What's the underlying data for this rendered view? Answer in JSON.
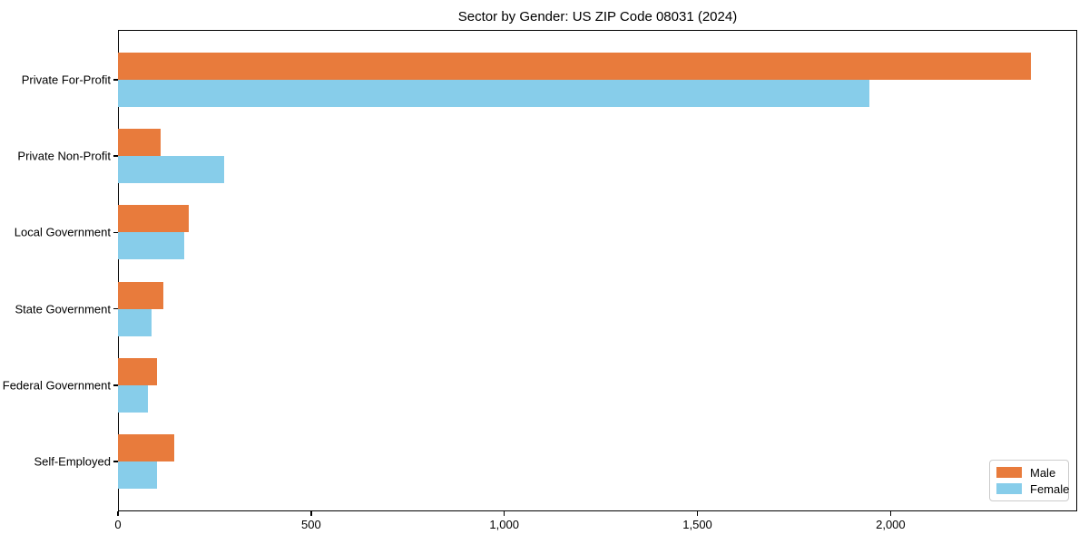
{
  "figure": {
    "background": "#ffffff"
  },
  "chart_data": {
    "type": "bar",
    "orientation": "horizontal",
    "title": "Sector by Gender: US ZIP Code 08031 (2024)",
    "categories": [
      "Private For-Profit",
      "Private Non-Profit",
      "Local Government",
      "State Government",
      "Federal Government",
      "Self-Employed"
    ],
    "series": [
      {
        "name": "Male",
        "color": "#e87b3c",
        "values": [
          2364,
          111,
          183,
          118,
          100,
          146
        ]
      },
      {
        "name": "Female",
        "color": "#87cdea",
        "values": [
          1945,
          275,
          172,
          86,
          77,
          102
        ]
      }
    ],
    "xlabel": "",
    "ylabel": "",
    "xlim": [
      0,
      2483
    ],
    "xticks": {
      "values": [
        0,
        500,
        1000,
        1500,
        2000
      ],
      "labels": [
        "0",
        "500",
        "1,000",
        "1,500",
        "2,000"
      ]
    },
    "grid": false,
    "legend": {
      "position": "lower right"
    }
  }
}
